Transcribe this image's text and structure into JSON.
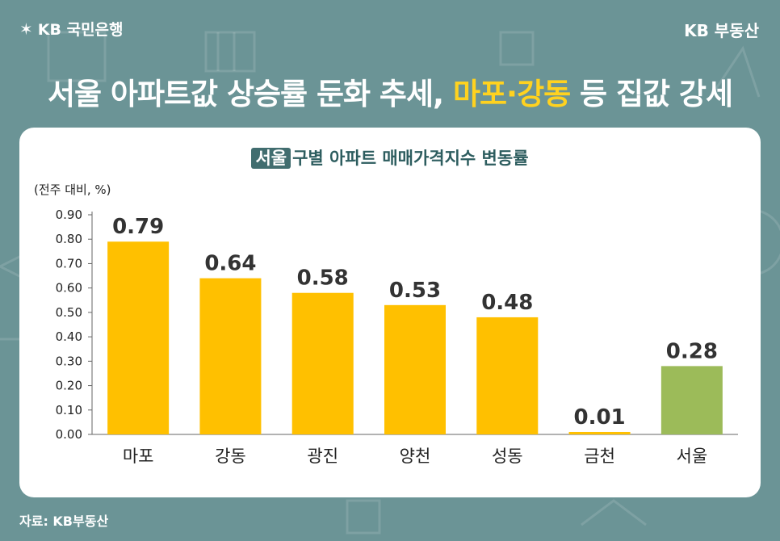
{
  "brand": {
    "left": "KB 국민은행",
    "right": "KB 부동산"
  },
  "headline": {
    "part1": "서울 아파트값 상승률 둔화 추세, ",
    "highlight": "마포·강동",
    "part2": " 등 집값 강세"
  },
  "source": "자료: KB부동산",
  "colors": {
    "bar": "#ffc000",
    "bar_highlight": "#9cbb59",
    "axis": "#666666",
    "accent": "#ffd21f"
  },
  "chart_data": {
    "type": "bar",
    "title_badge": "서울",
    "title_rest": "구별 아파트 매매가격지수 변동률",
    "unit_label": "(전주 대비, %)",
    "categories": [
      "마포",
      "강동",
      "광진",
      "양천",
      "성동",
      "금천",
      "서울"
    ],
    "values": [
      0.79,
      0.64,
      0.58,
      0.53,
      0.48,
      0.01,
      0.28
    ],
    "value_labels": [
      "0.79",
      "0.64",
      "0.58",
      "0.53",
      "0.48",
      "0.01",
      "0.28"
    ],
    "highlight_category": "서울",
    "yticks": [
      "0.00",
      "0.10",
      "0.20",
      "0.30",
      "0.40",
      "0.50",
      "0.60",
      "0.70",
      "0.80",
      "0.90"
    ],
    "ylim": [
      0,
      0.9
    ]
  }
}
